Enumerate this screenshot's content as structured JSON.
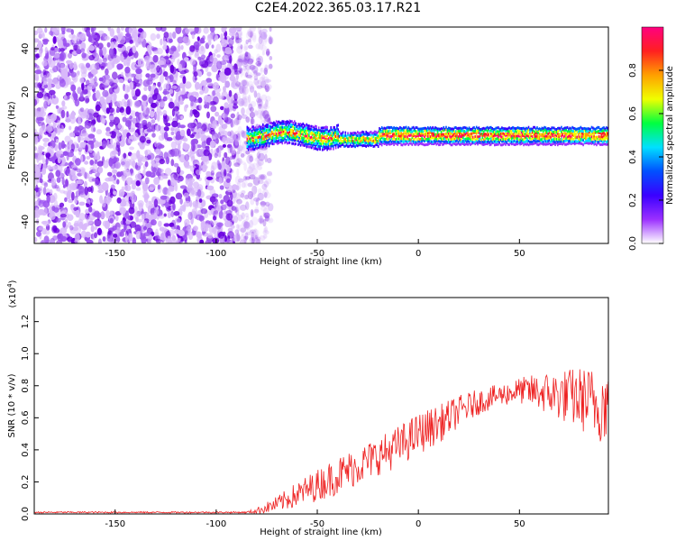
{
  "figure": {
    "title": "C2E4.2022.365.03.17.R21"
  },
  "chart_data": [
    {
      "type": "heatmap",
      "xlabel": "Height of straight line (km)",
      "ylabel": "Frequency (Hz)",
      "xlim": [
        -190,
        94
      ],
      "ylim": [
        -50,
        50
      ],
      "xticks": [
        -150,
        -100,
        -50,
        0,
        50
      ],
      "yticks": [
        -40,
        -20,
        0,
        20,
        40
      ],
      "description_noise_region_x": [
        -190,
        -78
      ],
      "signal_band_center_hz": 0,
      "signal_band_start_km": -85,
      "colorbar": {
        "label": "Normalized spectral amplitude",
        "range": [
          0.0,
          1.0
        ],
        "ticks": [
          "0.0",
          "0.2",
          "0.4",
          "0.6",
          "0.8"
        ],
        "colormap": [
          "#ffffff",
          "#9b30ff",
          "#3a00ff",
          "#0050ff",
          "#00e0ff",
          "#00ff40",
          "#f0ff00",
          "#ffa000",
          "#ff2020",
          "#ff0080"
        ]
      }
    },
    {
      "type": "line",
      "xlabel": "Height of straight line (km)",
      "ylabel": "SNR (10 * v/v)",
      "yscale_label": "(x10",
      "yscale_exp": "4",
      "yscale_close": ")",
      "xlim": [
        -190,
        94
      ],
      "ylim": [
        0,
        1.35
      ],
      "xticks": [
        -150,
        -100,
        -50,
        0,
        50
      ],
      "yticks": [
        "0.0",
        "0.2",
        "0.4",
        "0.6",
        "0.8",
        "1.0",
        "1.2"
      ],
      "color": "#ee2222",
      "series_envelope": {
        "x": [
          -190,
          -85,
          -80,
          -70,
          -60,
          -50,
          -40,
          -30,
          -20,
          -10,
          0,
          10,
          20,
          30,
          40,
          50,
          60,
          70,
          80,
          90,
          94
        ],
        "mean": [
          0.01,
          0.01,
          0.02,
          0.06,
          0.12,
          0.18,
          0.24,
          0.3,
          0.36,
          0.42,
          0.5,
          0.56,
          0.64,
          0.7,
          0.74,
          0.77,
          0.76,
          0.74,
          0.72,
          0.68,
          0.7
        ],
        "spread": [
          0.005,
          0.005,
          0.02,
          0.05,
          0.08,
          0.1,
          0.12,
          0.12,
          0.12,
          0.13,
          0.13,
          0.12,
          0.1,
          0.08,
          0.07,
          0.08,
          0.12,
          0.16,
          0.2,
          0.24,
          0.25
        ]
      }
    }
  ]
}
